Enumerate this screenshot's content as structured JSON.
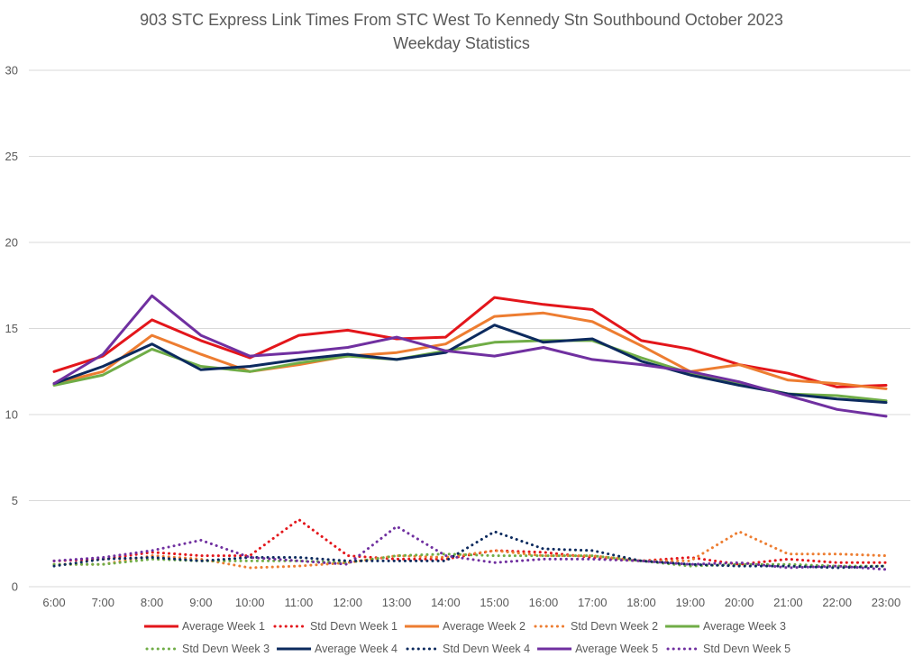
{
  "chart_data": {
    "type": "line",
    "title": "903 STC Express Link Times From STC West To Kennedy Stn Southbound October 2023",
    "subtitle": "Weekday Statistics",
    "xlabel": "",
    "ylabel": "",
    "ylim": [
      0,
      30
    ],
    "yticks": [
      "0",
      "5",
      "10",
      "15",
      "20",
      "25",
      "30"
    ],
    "ytick_values": [
      0,
      5,
      10,
      15,
      20,
      25,
      30
    ],
    "grid": true,
    "legend_position": "bottom",
    "categories": [
      "6:00",
      "7:00",
      "8:00",
      "9:00",
      "10:00",
      "11:00",
      "12:00",
      "13:00",
      "14:00",
      "15:00",
      "16:00",
      "17:00",
      "18:00",
      "19:00",
      "20:00",
      "21:00",
      "22:00",
      "23:00"
    ],
    "series": [
      {
        "name": "Average Week 1",
        "color": "#E3161B",
        "style": "solid",
        "values": [
          12.5,
          13.4,
          15.5,
          14.3,
          13.3,
          14.6,
          14.9,
          14.4,
          14.5,
          16.8,
          16.4,
          16.1,
          14.3,
          13.8,
          12.9,
          12.4,
          11.6,
          11.7
        ]
      },
      {
        "name": "Std Devn Week 1",
        "color": "#E3161B",
        "style": "dotted",
        "values": [
          1.5,
          1.6,
          2.0,
          1.8,
          1.8,
          3.9,
          1.8,
          1.6,
          1.6,
          2.1,
          2.0,
          1.7,
          1.5,
          1.7,
          1.3,
          1.6,
          1.4,
          1.4
        ]
      },
      {
        "name": "Average Week 2",
        "color": "#ED7D31",
        "style": "solid",
        "values": [
          11.8,
          12.5,
          14.6,
          13.5,
          12.5,
          12.9,
          13.4,
          13.6,
          14.1,
          15.7,
          15.9,
          15.4,
          14.0,
          12.5,
          12.9,
          12.0,
          11.8,
          11.5
        ]
      },
      {
        "name": "Std Devn Week 2",
        "color": "#ED7D31",
        "style": "dotted",
        "values": [
          1.3,
          1.3,
          1.8,
          1.6,
          1.1,
          1.2,
          1.4,
          1.8,
          1.7,
          2.1,
          1.8,
          1.8,
          1.5,
          1.5,
          3.2,
          1.9,
          1.9,
          1.8
        ]
      },
      {
        "name": "Average Week 3",
        "color": "#70AD47",
        "style": "solid",
        "values": [
          11.7,
          12.3,
          13.8,
          12.8,
          12.5,
          13.0,
          13.4,
          13.2,
          13.7,
          14.2,
          14.3,
          14.3,
          13.3,
          12.4,
          11.8,
          11.2,
          11.1,
          10.8
        ]
      },
      {
        "name": "Std Devn Week 3",
        "color": "#70AD47",
        "style": "dotted",
        "values": [
          1.3,
          1.3,
          1.6,
          1.5,
          1.5,
          1.5,
          1.4,
          1.8,
          1.9,
          1.8,
          1.8,
          1.8,
          1.5,
          1.2,
          1.3,
          1.3,
          1.2,
          1.2
        ]
      },
      {
        "name": "Average Week 4",
        "color": "#0C2A5E",
        "style": "solid",
        "values": [
          11.8,
          12.8,
          14.1,
          12.6,
          12.8,
          13.2,
          13.5,
          13.2,
          13.6,
          15.2,
          14.2,
          14.4,
          13.1,
          12.3,
          11.7,
          11.2,
          10.9,
          10.7
        ]
      },
      {
        "name": "Std Devn Week 4",
        "color": "#0C2A5E",
        "style": "dotted",
        "values": [
          1.2,
          1.6,
          1.7,
          1.5,
          1.7,
          1.7,
          1.5,
          1.5,
          1.5,
          3.2,
          2.2,
          2.1,
          1.5,
          1.3,
          1.2,
          1.2,
          1.1,
          1.2
        ]
      },
      {
        "name": "Average Week 5",
        "color": "#7030A0",
        "style": "solid",
        "values": [
          11.8,
          13.5,
          16.9,
          14.6,
          13.4,
          13.6,
          13.9,
          14.5,
          13.7,
          13.4,
          13.9,
          13.2,
          12.9,
          12.5,
          11.9,
          11.1,
          10.3,
          9.9
        ]
      },
      {
        "name": "Std Devn Week 5",
        "color": "#7030A0",
        "style": "dotted",
        "values": [
          1.5,
          1.7,
          2.1,
          2.7,
          1.7,
          1.5,
          1.3,
          3.5,
          1.8,
          1.4,
          1.6,
          1.6,
          1.5,
          1.3,
          1.4,
          1.1,
          1.2,
          1.0
        ]
      }
    ]
  }
}
